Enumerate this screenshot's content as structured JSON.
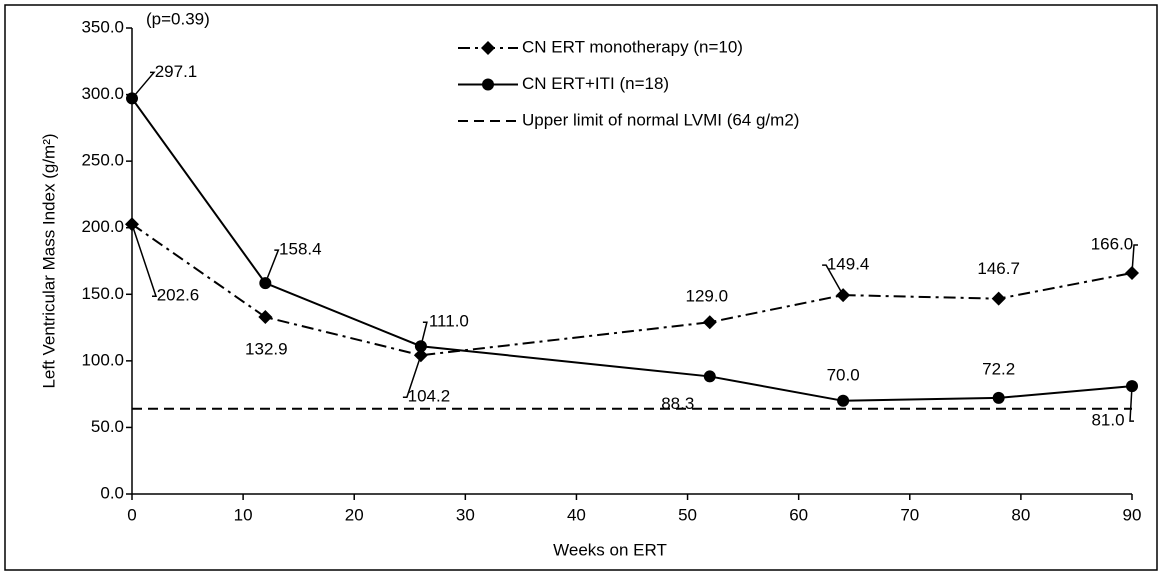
{
  "chart_data": {
    "type": "line",
    "x_label": "Weeks on ERT",
    "y_label": "Left Ventricular Mass Index (g/m²)",
    "annotation": "(p=0.39)",
    "xlim": [
      0,
      90
    ],
    "xticks": [
      0,
      10,
      20,
      30,
      40,
      50,
      60,
      70,
      80,
      90
    ],
    "ylim": [
      0,
      350
    ],
    "yticks": [
      {
        "value": 0,
        "label": "0.0"
      },
      {
        "value": 50,
        "label": "50.0"
      },
      {
        "value": 100,
        "label": "100.0"
      },
      {
        "value": 150,
        "label": "150.0"
      },
      {
        "value": 200,
        "label": "200.0"
      },
      {
        "value": 250,
        "label": "250.0"
      },
      {
        "value": 300,
        "label": "300.0"
      },
      {
        "value": 350,
        "label": "350.0"
      }
    ],
    "series": [
      {
        "name": "CN ERT monotherapy (n=10)",
        "color": "#000000",
        "marker": "diamond",
        "dash": "dash-dot",
        "x": [
          0,
          12,
          26,
          52,
          64,
          78,
          90
        ],
        "values": [
          202.6,
          132.9,
          104.2,
          129.0,
          149.4,
          146.7,
          166.0
        ],
        "value_labels": [
          "202.6",
          "132.9",
          "104.2",
          "129.0",
          "149.4",
          "146.7",
          "166.0"
        ]
      },
      {
        "name": "CN ERT+ITI (n=18)",
        "color": "#000000",
        "marker": "circle",
        "dash": "solid",
        "x": [
          0,
          12,
          26,
          52,
          64,
          78,
          90
        ],
        "values": [
          297.1,
          158.4,
          111.0,
          88.3,
          70.0,
          72.2,
          81.0
        ],
        "value_labels": [
          "297.1",
          "158.4",
          "111.0",
          "88.3",
          "70.0",
          "72.2",
          "81.0"
        ]
      }
    ],
    "reference_line": {
      "name": "Upper limit of normal LVMI (64 g/m2)",
      "value": 64,
      "dash": "dashed",
      "color": "#000000"
    }
  }
}
